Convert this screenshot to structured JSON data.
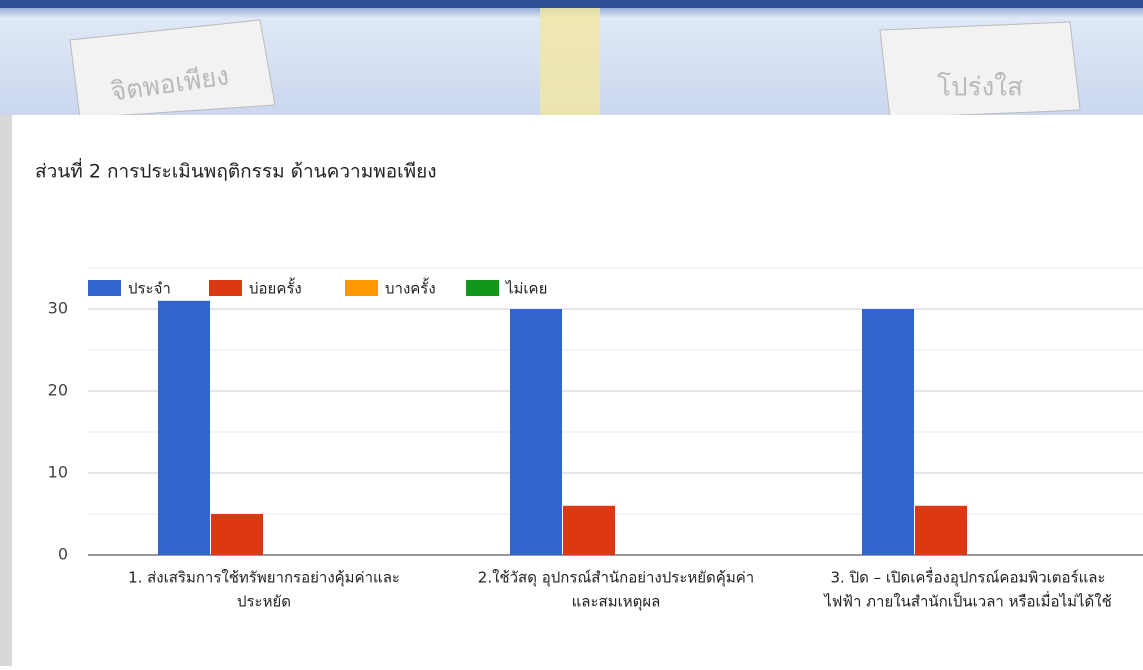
{
  "banner": {
    "left_text": "จิตพอเพียง",
    "right_text": "โปร่งใส"
  },
  "chart_data": {
    "type": "bar",
    "title": "ส่วนที่ 2 การประเมินพฤติกรรม  ด้านความพอเพียง",
    "categories": [
      [
        "1. ส่งเสริมการใช้ทรัพยากรอย่างคุ้มค่าและ",
        "ประหยัด"
      ],
      [
        "2.ใช้วัสดุ อุปกรณ์สำนักอย่างประหยัดคุ้มค่า",
        "และสมเหตุผล"
      ],
      [
        "3. ปิด – เปิดเครื่องอุปกรณ์คอมพิวเตอร์และ",
        "ไฟฟ้า ภายในสำนักเป็นเวลา หรือเมื่อไม่ได้ใช้"
      ]
    ],
    "series": [
      {
        "name": "ประจำ",
        "color": "#3366cc",
        "values": [
          31,
          30,
          30
        ]
      },
      {
        "name": "บ่อยครั้ง",
        "color": "#dc3912",
        "values": [
          5,
          6,
          6
        ]
      },
      {
        "name": "บางครั้ง",
        "color": "#ff9900",
        "values": [
          0,
          0,
          0
        ]
      },
      {
        "name": "ไม่เคย",
        "color": "#109618",
        "values": [
          0,
          0,
          0
        ]
      }
    ],
    "ylim": [
      0,
      35
    ],
    "yticks": [
      0,
      10,
      20,
      30
    ],
    "minor_yticks": [
      5,
      15,
      25,
      35
    ],
    "grid": true,
    "legend": "top"
  }
}
